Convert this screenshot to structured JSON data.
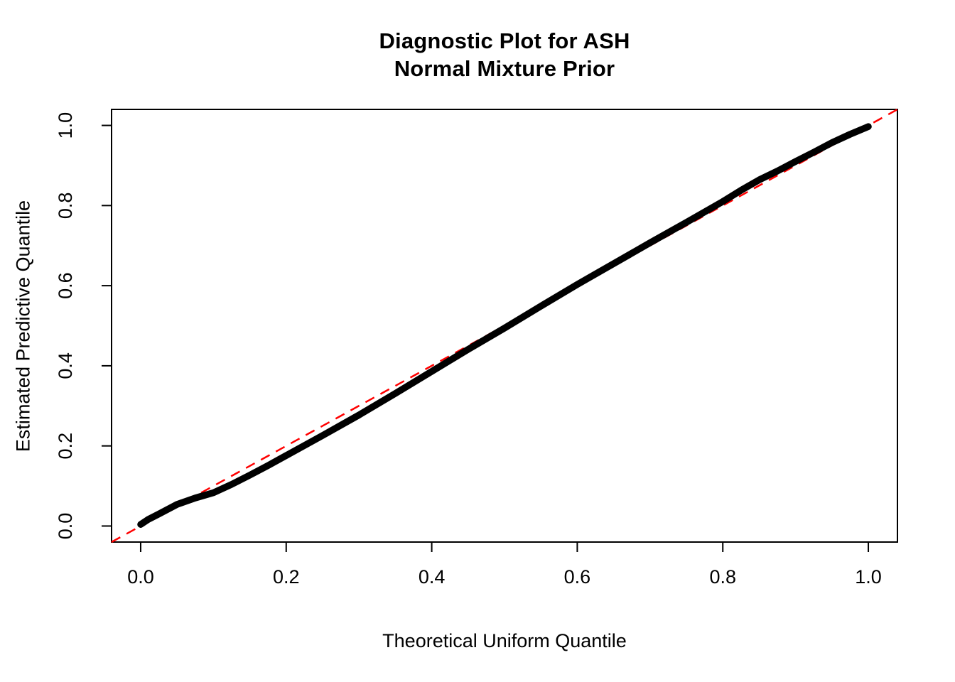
{
  "figure": {
    "title_line1": "Diagnostic Plot for ASH",
    "title_line2": "Normal Mixture Prior"
  },
  "chart_data": {
    "type": "scatter",
    "title": "Diagnostic Plot for ASH\nNormal Mixture Prior",
    "xlabel": "Theoretical Uniform Quantile",
    "ylabel": "Estimated Predictive Quantile",
    "xlim": [
      -0.04,
      1.04
    ],
    "ylim": [
      -0.04,
      1.04
    ],
    "grid": false,
    "legend": "none",
    "x_ticks": [
      0.0,
      0.2,
      0.4,
      0.6,
      0.8,
      1.0
    ],
    "y_ticks": [
      0.0,
      0.2,
      0.4,
      0.6,
      0.8,
      1.0
    ],
    "x_tick_labels": [
      "0.0",
      "0.2",
      "0.4",
      "0.6",
      "0.8",
      "1.0"
    ],
    "y_tick_labels": [
      "0.0",
      "0.2",
      "0.4",
      "0.6",
      "0.8",
      "1.0"
    ],
    "series": [
      {
        "name": "qq-points",
        "description": "sorted estimated predictive quantiles vs uniform quantiles (dense point curve)",
        "color": "#000000",
        "line_width": 9.5,
        "x": [
          0.0,
          0.01,
          0.025,
          0.05,
          0.075,
          0.1,
          0.125,
          0.15,
          0.175,
          0.2,
          0.25,
          0.3,
          0.35,
          0.4,
          0.45,
          0.5,
          0.55,
          0.6,
          0.65,
          0.7,
          0.75,
          0.8,
          0.825,
          0.85,
          0.875,
          0.9,
          0.925,
          0.95,
          0.975,
          1.0
        ],
        "y": [
          0.004,
          0.016,
          0.03,
          0.054,
          0.07,
          0.083,
          0.104,
          0.127,
          0.151,
          0.176,
          0.226,
          0.277,
          0.331,
          0.386,
          0.441,
          0.494,
          0.549,
          0.603,
          0.655,
          0.707,
          0.758,
          0.81,
          0.838,
          0.864,
          0.886,
          0.91,
          0.933,
          0.957,
          0.978,
          0.997
        ]
      }
    ],
    "reference_line": {
      "name": "identity-line",
      "style": "dashed",
      "color": "#FF0000",
      "line_width": 2.5,
      "from": [
        -0.04,
        -0.04
      ],
      "to": [
        1.04,
        1.04
      ]
    }
  },
  "colors": {
    "points": "#000000",
    "reference": "#FF0000",
    "axis": "#000000",
    "background": "#FFFFFF"
  }
}
